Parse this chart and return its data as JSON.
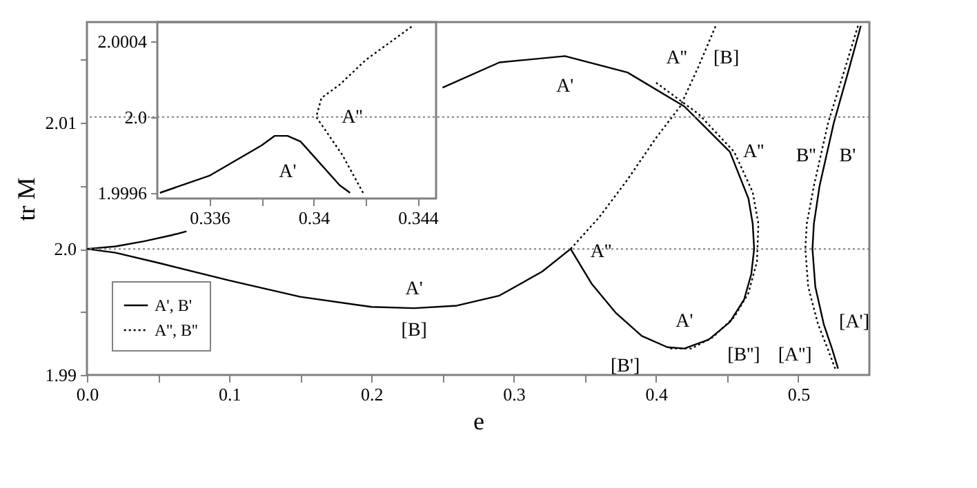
{
  "chart_data": [
    {
      "type": "line",
      "xlabel": "e",
      "ylabel": "tr M",
      "xlim": [
        0,
        0.55
      ],
      "ylim": [
        1.99,
        2.018
      ],
      "xticks": [
        {
          "value": 0,
          "label": "0.0"
        },
        {
          "value": 0.05,
          "label": null
        },
        0.1,
        {
          "value": 0.15,
          "label": null
        },
        0.2,
        {
          "value": 0.25,
          "label": null
        },
        0.3,
        {
          "value": 0.35,
          "label": null
        },
        0.4,
        {
          "value": 0.45,
          "label": null
        },
        0.5
      ],
      "yticks": [
        1.99,
        {
          "value": 1.995,
          "label": null
        },
        {
          "value": 2.0,
          "label": "2.0"
        },
        {
          "value": 2.005,
          "label": null
        },
        2.01,
        {
          "value": 2.015,
          "label": null
        }
      ],
      "grid": false,
      "legend": "bottom left",
      "marker": "none",
      "ref_lines": [
        {
          "axis": "y",
          "value": 2.0,
          "color": "#808080",
          "line_style": "dotted"
        }
      ],
      "series": [
        {
          "name": "A', B'",
          "color": "#000000",
          "line_style": "solid",
          "x": [
            0.07,
            0.06,
            0.04,
            0.02,
            0,
            0.02,
            0.05,
            0.1,
            0.15,
            0.2,
            0.23,
            0.26,
            0.29,
            0.32,
            0.34,
            0.355,
            0.372,
            0.39,
            0.408,
            0.42,
            0.437,
            0.452,
            0.462,
            0.467,
            0.469,
            0.468,
            0.465,
            0.452,
            0.42,
            0.38,
            0.336,
            0.29,
            0.25
          ],
          "values": [
            2.0014,
            2.0011,
            2.0006,
            2.0002,
            2.0,
            1.9997,
            1.9989,
            1.9975,
            1.9962,
            1.9954,
            1.9953,
            1.9955,
            1.9963,
            1.9982,
            2.0,
            1.9972,
            1.9949,
            1.9931,
            1.9922,
            1.9921,
            1.9928,
            1.9942,
            1.996,
            1.998,
            2.0,
            2.002,
            2.004,
            2.0077,
            2.0113,
            2.014,
            2.0153,
            2.0148,
            2.0128
          ]
        },
        {
          "name": "A'', B''",
          "color": "#000000",
          "line_style": "dotted",
          "x": [
            0.34,
            0.36,
            0.38,
            0.4,
            0.417,
            0.43,
            0.442
          ],
          "values": [
            2.0,
            2.0025,
            2.0055,
            2.0088,
            2.0113,
            2.0145,
            2.0177
          ]
        },
        {
          "color": "#000000",
          "line_style": "dotted",
          "x": [
            0.41,
            0.425,
            0.44,
            0.455,
            0.465,
            0.471,
            0.472,
            0.468,
            0.455,
            0.43,
            0.4
          ],
          "values": [
            1.9921,
            1.9921,
            1.993,
            1.9946,
            1.9965,
            1.999,
            2.002,
            2.0045,
            2.0077,
            2.0107,
            2.0132
          ]
        },
        {
          "color": "#000000",
          "line_style": "solid",
          "x": [
            0.544,
            0.535,
            0.525,
            0.515,
            0.511,
            0.51,
            0.512,
            0.518,
            0.524,
            0.528
          ],
          "values": [
            2.0177,
            2.014,
            2.01,
            2.005,
            2.002,
            2.0,
            1.997,
            1.994,
            1.992,
            1.9905
          ]
        },
        {
          "color": "#000000",
          "line_style": "dotted",
          "x": [
            0.542,
            0.532,
            0.521,
            0.511,
            0.506,
            0.505,
            0.507,
            0.514,
            0.521,
            0.526
          ],
          "values": [
            2.0177,
            2.014,
            2.01,
            2.005,
            2.002,
            2.0,
            1.997,
            1.994,
            1.992,
            1.9905
          ]
        }
      ],
      "annotations": [
        {
          "text": "A'",
          "x": 0.23,
          "y": 1.9953
        },
        {
          "text": "[B]",
          "x": 0.23,
          "y": 1.9953
        },
        {
          "text": "A''",
          "x": 0.34,
          "y": 2.0
        },
        {
          "text": "[B']",
          "x": 0.39,
          "y": 1.9931
        },
        {
          "text": "A'",
          "x": 0.42,
          "y": 1.9921
        },
        {
          "text": "[B'']",
          "x": 0.452,
          "y": 1.9942
        },
        {
          "text": "[A'']",
          "x": 0.521,
          "y": 1.992
        },
        {
          "text": "[A']",
          "x": 0.518,
          "y": 1.994
        },
        {
          "text": "A'",
          "x": 0.336,
          "y": 2.0153
        },
        {
          "text": "A''",
          "x": 0.43,
          "y": 2.0145
        },
        {
          "text": "[B]",
          "x": 0.43,
          "y": 2.0145
        },
        {
          "text": "A''",
          "x": 0.455,
          "y": 2.0077
        },
        {
          "text": "B''",
          "x": 0.521,
          "y": 2.01
        },
        {
          "text": "B'",
          "x": 0.525,
          "y": 2.01
        }
      ]
    },
    {
      "type": "line",
      "xlim": [
        0.334,
        0.3447
      ],
      "ylim": [
        1.99957,
        2.0005
      ],
      "xticks": [
        0.336,
        {
          "value": 0.338,
          "label": null
        },
        0.34,
        {
          "value": 0.342,
          "label": null
        },
        0.344
      ],
      "yticks": [
        1.9996,
        {
          "value": 2.0,
          "label": "2.0"
        },
        2.0004
      ],
      "grid": false,
      "marker": "none",
      "ref_lines": [
        {
          "axis": "y",
          "value": 2.0,
          "color": "#808080",
          "line_style": "dotted"
        }
      ],
      "series": [
        {
          "color": "#000000",
          "line_style": "solid",
          "x": [
            0.3341,
            0.336,
            0.338,
            0.3385,
            0.339,
            0.3395,
            0.341,
            0.3414
          ],
          "values": [
            1.9996,
            1.99969,
            1.99985,
            1.9999,
            1.9999,
            1.99987,
            1.99964,
            1.9996
          ]
        },
        {
          "color": "#000000",
          "line_style": "dotted",
          "x": [
            0.3419,
            0.3411,
            0.3401,
            0.3403,
            0.341,
            0.342,
            0.3438
          ],
          "values": [
            1.9996,
            1.9998,
            2.0,
            2.0001,
            2.00017,
            2.0003,
            2.00048
          ]
        }
      ],
      "annotations": [
        {
          "text": "A'",
          "x": 0.339,
          "y": 1.9999
        },
        {
          "text": "A''",
          "x": 0.3401,
          "y": 2.0
        }
      ]
    }
  ]
}
